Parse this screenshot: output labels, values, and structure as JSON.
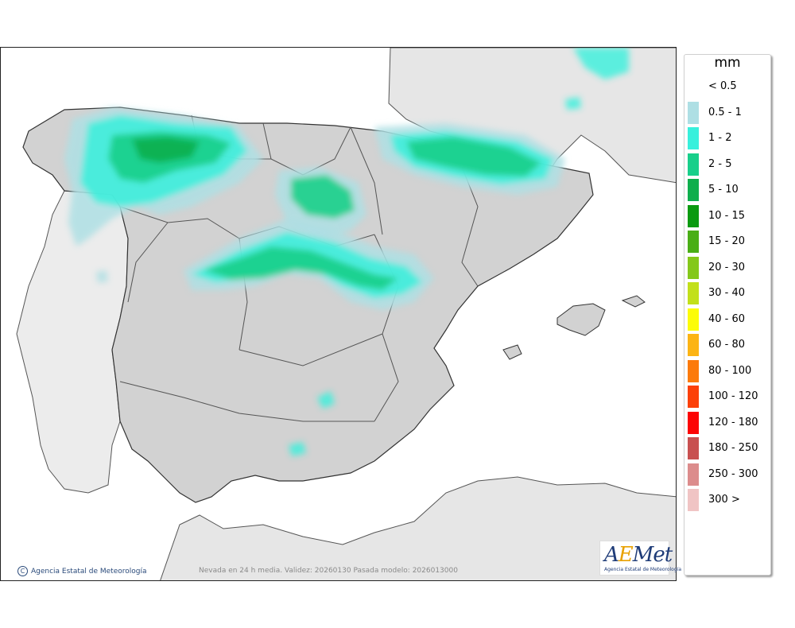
{
  "legend": {
    "unit": "mm",
    "items": [
      {
        "label": "< 0.5",
        "color": "#ffffff"
      },
      {
        "label": "0.5 - 1",
        "color": "#aedfe4"
      },
      {
        "label": "1 - 2",
        "color": "#38f0dc"
      },
      {
        "label": "2 - 5",
        "color": "#18cf8a"
      },
      {
        "label": "5 - 10",
        "color": "#0eae4c"
      },
      {
        "label": "10 - 15",
        "color": "#0a9a10"
      },
      {
        "label": "15 - 20",
        "color": "#4aae16"
      },
      {
        "label": "20 - 30",
        "color": "#84c81a"
      },
      {
        "label": "30 - 40",
        "color": "#c2e01a"
      },
      {
        "label": "40 - 60",
        "color": "#fcfc08"
      },
      {
        "label": "60 - 80",
        "color": "#fcb414"
      },
      {
        "label": "80 - 100",
        "color": "#fc7a0a"
      },
      {
        "label": "100 - 120",
        "color": "#fc4008"
      },
      {
        "label": "120 - 180",
        "color": "#fc0404"
      },
      {
        "label": "180 - 250",
        "color": "#c85050"
      },
      {
        "label": "250 - 300",
        "color": "#dc8c8c"
      },
      {
        "label": "300 >",
        "color": "#f0c4c4"
      }
    ]
  },
  "footer": {
    "credit": "Agencia Estatal de Meteorología",
    "caption": "Nevada en 24 h media. Validez: 20260130 Pasada modelo: 2026013000"
  },
  "logo": {
    "word_left": "A",
    "word_accent": "E",
    "word_right": "Met",
    "subtitle": "Agencia Estatal de Meteorología"
  }
}
